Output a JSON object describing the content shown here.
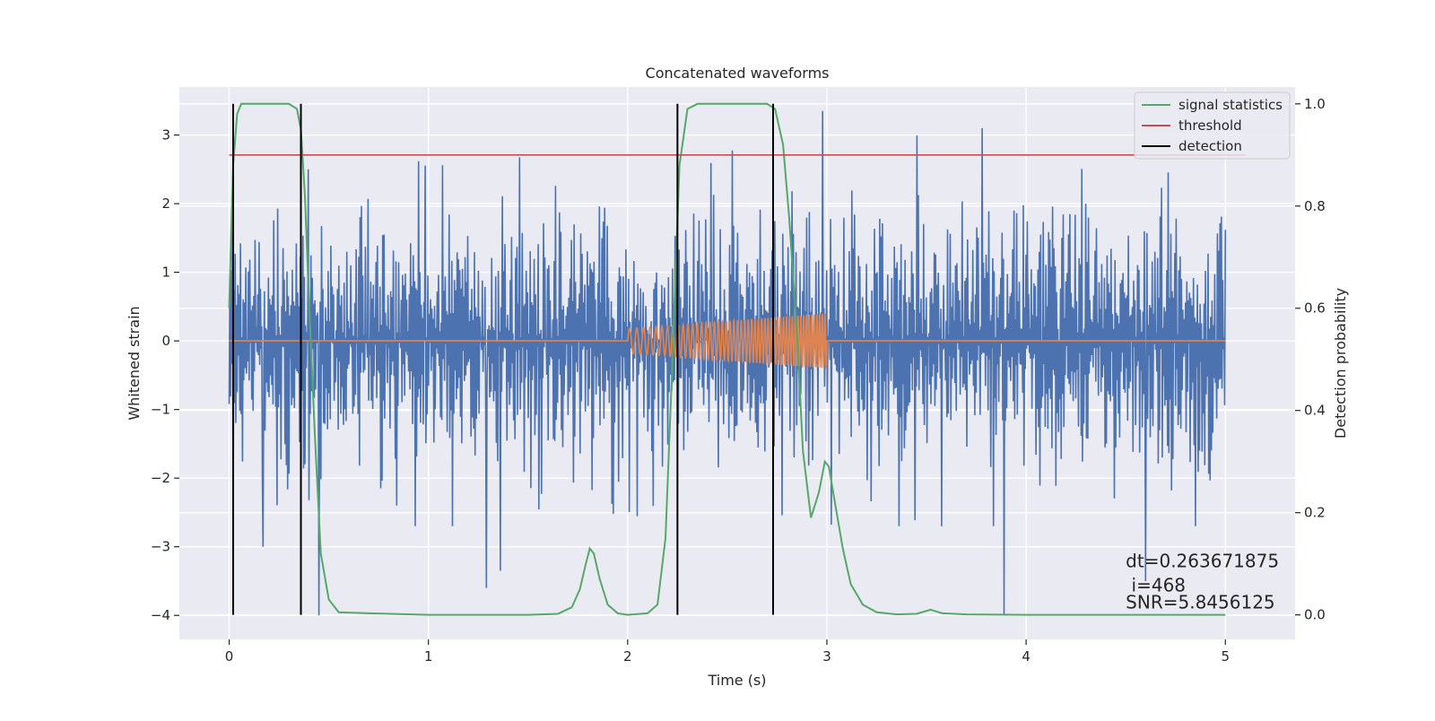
{
  "chart_data": {
    "type": "line",
    "title": "Concatenated waveforms",
    "xlabel": "Time (s)",
    "ylabel": "Whitened strain",
    "y2label": "Detection probability",
    "xlim": [
      -0.25,
      5.35
    ],
    "ylim": [
      -4.35,
      3.7
    ],
    "y2lim": [
      -0.048,
      1.033
    ],
    "x_ticks": [
      0,
      1,
      2,
      3,
      4,
      5
    ],
    "y_ticks": [
      -4,
      -3,
      -2,
      -1,
      0,
      1,
      2,
      3
    ],
    "y2_ticks": [
      0.0,
      0.2,
      0.4,
      0.6,
      0.8,
      1.0
    ],
    "grid": true,
    "legend_position": "top-right",
    "colors": {
      "background": "#eaeaf2",
      "grid": "#ffffff",
      "noise": "#4c72b0",
      "injection": "#dd8452",
      "statistic": "#55a868",
      "threshold": "#c44e52",
      "detection": "#000000"
    },
    "series": [
      {
        "name": "",
        "role": "whitened noisy strain",
        "axis": "left",
        "x_range": [
          0,
          5
        ],
        "typical_amplitude": 2.2,
        "extreme_values": [
          [
            0.02,
            -2.95
          ],
          [
            0.17,
            -3.0
          ],
          [
            0.45,
            -4.0
          ],
          [
            1.29,
            -3.6
          ],
          [
            1.36,
            -3.35
          ],
          [
            2.98,
            3.35
          ],
          [
            3.89,
            -4.0
          ],
          [
            4.6,
            -3.5
          ]
        ]
      },
      {
        "name": "",
        "role": "injected chirp",
        "axis": "left",
        "x": [
          0,
          2.0,
          2.0,
          3.0,
          3.0,
          5.0
        ],
        "envelope": [
          0,
          0,
          0.18,
          0.4,
          0,
          0
        ]
      },
      {
        "name": "signal statistics",
        "axis": "right",
        "x": [
          0.0,
          0.01,
          0.02,
          0.04,
          0.06,
          0.1,
          0.2,
          0.3,
          0.34,
          0.36,
          0.38,
          0.4,
          0.43,
          0.46,
          0.5,
          0.55,
          0.7,
          1.0,
          1.5,
          1.65,
          1.72,
          1.76,
          1.79,
          1.81,
          1.83,
          1.86,
          1.9,
          1.95,
          2.0,
          2.1,
          2.15,
          2.19,
          2.22,
          2.26,
          2.3,
          2.35,
          2.45,
          2.6,
          2.7,
          2.74,
          2.78,
          2.81,
          2.85,
          2.88,
          2.92,
          2.96,
          2.99,
          3.01,
          3.04,
          3.08,
          3.12,
          3.18,
          3.25,
          3.35,
          3.45,
          3.52,
          3.58,
          3.7,
          4.0,
          4.5,
          5.0
        ],
        "values": [
          0.6,
          0.75,
          0.88,
          0.98,
          1.0,
          1.0,
          1.0,
          1.0,
          0.99,
          0.95,
          0.82,
          0.62,
          0.35,
          0.12,
          0.03,
          0.005,
          0.003,
          0.0,
          0.0,
          0.002,
          0.015,
          0.05,
          0.1,
          0.13,
          0.12,
          0.07,
          0.02,
          0.003,
          0.0,
          0.003,
          0.02,
          0.15,
          0.45,
          0.88,
          0.99,
          1.0,
          1.0,
          1.0,
          1.0,
          0.99,
          0.92,
          0.78,
          0.55,
          0.32,
          0.19,
          0.24,
          0.3,
          0.29,
          0.22,
          0.13,
          0.06,
          0.02,
          0.005,
          0.001,
          0.002,
          0.01,
          0.003,
          0.001,
          0.0,
          0.0,
          0.0
        ]
      },
      {
        "name": "threshold",
        "axis": "right",
        "x": [
          0.0,
          5.1
        ],
        "values": [
          0.9,
          0.9
        ]
      },
      {
        "name": "detection",
        "axis": "right",
        "segments": [
          [
            0.02,
            0.36
          ],
          [
            2.25,
            2.73
          ]
        ],
        "span": [
          0.0,
          1.0
        ]
      }
    ],
    "annotations": [
      "dt=0.263671875",
      " i=468",
      "SNR=5.8456125"
    ]
  }
}
